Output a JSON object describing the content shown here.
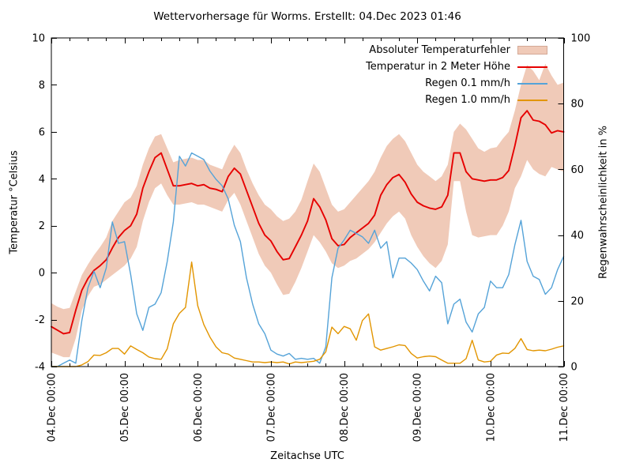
{
  "title": "Wettervorhersage für Worms. Erstellt: 04.Dec 2023 01:46",
  "axes": {
    "left_label": "Temperatur °Celsius",
    "right_label": "Regenwahrscheinlichkeit in %",
    "x_label": "Zeitachse UTC",
    "left_ticks": [
      -4,
      -2,
      0,
      2,
      4,
      6,
      8,
      10
    ],
    "right_ticks": [
      0,
      20,
      40,
      60,
      80,
      100
    ],
    "x_tick_labels": [
      "04.Dec 00:00",
      "05.Dec 00:00",
      "06.Dec 00:00",
      "07.Dec 00:00",
      "08.Dec 00:00",
      "09.Dec 00:00",
      "10.Dec 00:00",
      "11.Dec 00:00"
    ],
    "left_range": [
      -4,
      10
    ],
    "right_range": [
      0,
      100
    ],
    "x_range_hours": [
      0,
      168
    ],
    "minor_tick_hours": 6,
    "major_tick_hours": 24
  },
  "colors": {
    "background": "#ffffff",
    "axis": "#000000",
    "text": "#000000",
    "band": "#f0cab8",
    "temperature": "#e60000",
    "rain_light": "#55a3d8",
    "rain_heavy": "#e29500"
  },
  "legend": [
    {
      "label": "Absoluter Temperaturfehler",
      "swatch": "band",
      "color_key": "band"
    },
    {
      "label": "Temperatur in 2 Meter Höhe",
      "swatch": "line",
      "color_key": "temperature"
    },
    {
      "label": "Regen 0.1 mm/h",
      "swatch": "line",
      "color_key": "rain_light"
    },
    {
      "label": "Regen 1.0 mm/h",
      "swatch": "line",
      "color_key": "rain_heavy"
    }
  ],
  "chart_data": {
    "type": "line",
    "title": "Wettervorhersage für Worms. Erstellt: 04.Dec 2023 01:46",
    "xlabel": "Zeitachse UTC",
    "ylabel_left": "Temperatur °Celsius",
    "ylabel_right": "Regenwahrscheinlichkeit in %",
    "ylim_left": [
      -4,
      10
    ],
    "ylim_right": [
      0,
      100
    ],
    "grid": false,
    "legend_position": "top-right-inside",
    "x_unit": "hours since 04.Dec 2023 00:00 UTC",
    "x_start_hour": 0,
    "x_step_hours": 2,
    "series": [
      {
        "name": "Absoluter Temperaturfehler",
        "type": "band",
        "axis": "left",
        "upper": [
          -1.3,
          -1.45,
          -1.55,
          -1.5,
          -0.8,
          -0.1,
          0.35,
          0.75,
          1.1,
          1.5,
          2.2,
          2.6,
          3.0,
          3.2,
          3.7,
          4.6,
          5.3,
          5.8,
          5.9,
          5.3,
          4.7,
          4.8,
          4.85,
          4.9,
          4.8,
          4.8,
          4.6,
          4.5,
          4.4,
          5.0,
          5.45,
          5.1,
          4.4,
          3.8,
          3.3,
          2.9,
          2.7,
          2.4,
          2.2,
          2.3,
          2.6,
          3.1,
          3.9,
          4.65,
          4.3,
          3.6,
          2.9,
          2.6,
          2.7,
          3.0,
          3.3,
          3.6,
          3.9,
          4.3,
          4.9,
          5.4,
          5.7,
          5.9,
          5.6,
          5.1,
          4.6,
          4.3,
          4.1,
          3.9,
          4.1,
          4.6,
          6.0,
          6.35,
          6.1,
          5.7,
          5.3,
          5.15,
          5.3,
          5.35,
          5.7,
          6.0,
          6.9,
          8.0,
          8.85,
          8.6,
          8.2,
          8.9,
          8.4,
          8.0,
          8.1
        ],
        "lower": [
          -3.4,
          -3.5,
          -3.6,
          -3.6,
          -2.8,
          -1.6,
          -1.0,
          -0.6,
          -0.5,
          -0.3,
          -0.1,
          0.1,
          0.3,
          0.6,
          1.1,
          2.2,
          3.0,
          3.6,
          3.8,
          3.3,
          2.9,
          2.9,
          2.95,
          3.0,
          2.9,
          2.9,
          2.8,
          2.7,
          2.6,
          3.1,
          3.4,
          2.9,
          2.2,
          1.5,
          0.8,
          0.3,
          0.0,
          -0.5,
          -0.95,
          -0.9,
          -0.4,
          0.2,
          0.9,
          1.6,
          1.3,
          0.9,
          0.4,
          0.2,
          0.3,
          0.5,
          0.6,
          0.8,
          1.0,
          1.3,
          1.7,
          2.1,
          2.4,
          2.6,
          2.3,
          1.6,
          1.1,
          0.7,
          0.4,
          0.2,
          0.5,
          1.2,
          3.9,
          3.9,
          2.6,
          1.6,
          1.5,
          1.55,
          1.6,
          1.6,
          2.0,
          2.6,
          3.6,
          4.1,
          4.8,
          4.4,
          4.2,
          4.1,
          4.5,
          4.4,
          4.3
        ]
      },
      {
        "name": "Temperatur in 2 Meter Höhe",
        "type": "line",
        "axis": "left",
        "values": [
          -2.3,
          -2.45,
          -2.6,
          -2.55,
          -1.6,
          -0.75,
          -0.25,
          0.1,
          0.3,
          0.55,
          1.05,
          1.5,
          1.8,
          2.0,
          2.5,
          3.6,
          4.3,
          4.9,
          5.1,
          4.4,
          3.7,
          3.7,
          3.75,
          3.8,
          3.7,
          3.75,
          3.6,
          3.55,
          3.45,
          4.1,
          4.45,
          4.2,
          3.5,
          2.8,
          2.1,
          1.6,
          1.35,
          0.9,
          0.55,
          0.6,
          1.1,
          1.6,
          2.2,
          3.15,
          2.8,
          2.25,
          1.45,
          1.15,
          1.2,
          1.5,
          1.7,
          1.9,
          2.1,
          2.45,
          3.3,
          3.75,
          4.05,
          4.18,
          3.85,
          3.35,
          3.0,
          2.85,
          2.75,
          2.7,
          2.8,
          3.3,
          5.1,
          5.1,
          4.3,
          4.0,
          3.95,
          3.9,
          3.95,
          3.95,
          4.05,
          4.35,
          5.4,
          6.6,
          6.9,
          6.5,
          6.45,
          6.3,
          5.95,
          6.05,
          6.0
        ]
      },
      {
        "name": "Regen 0.1 mm/h",
        "type": "line",
        "axis": "right",
        "values": [
          0,
          0,
          1,
          2,
          1,
          14,
          24,
          29,
          24,
          30,
          44,
          37.5,
          38,
          28,
          16,
          11,
          18,
          19,
          22.5,
          32,
          44,
          64,
          61,
          65,
          64,
          63,
          59.5,
          57,
          55,
          51,
          43,
          38,
          27,
          19,
          13,
          10,
          5,
          3.8,
          3.2,
          4,
          2.2,
          2.5,
          2.2,
          2.5,
          1,
          6,
          27,
          36,
          38.5,
          41.5,
          40.5,
          39.5,
          37.5,
          41.5,
          36,
          38,
          27,
          33,
          33,
          31.5,
          29.5,
          26,
          23,
          27.5,
          25.5,
          13,
          19,
          20.5,
          13.5,
          10.5,
          16,
          18,
          26,
          24,
          24,
          28,
          37,
          44.5,
          32,
          27.5,
          26.5,
          22,
          24,
          29.5,
          33.5
        ]
      },
      {
        "name": "Regen 1.0 mm/h",
        "type": "line",
        "axis": "right",
        "values": [
          0,
          0,
          0,
          0,
          0,
          0.5,
          1.5,
          3.5,
          3.4,
          4.2,
          5.5,
          5.5,
          3.8,
          6.3,
          5.2,
          4.2,
          2.9,
          2.4,
          2.2,
          5.4,
          13,
          16.2,
          18,
          31.8,
          18.5,
          12.8,
          9,
          6,
          4.2,
          3.8,
          2.6,
          2.2,
          1.8,
          1.4,
          1.4,
          1.2,
          1.4,
          1.2,
          1.4,
          0.8,
          1.4,
          1.2,
          1.4,
          1.6,
          2.2,
          4.5,
          12,
          10,
          12.2,
          11.5,
          8,
          14,
          16,
          6,
          5,
          5.5,
          6,
          6.6,
          6.4,
          4,
          2.6,
          3,
          3.2,
          3,
          2,
          1,
          1,
          1,
          2.4,
          8,
          2,
          1.4,
          1.6,
          3.5,
          4.1,
          4,
          5.5,
          8.5,
          5.2,
          4.8,
          5,
          4.8,
          5.3,
          5.9,
          6.3
        ]
      }
    ]
  }
}
